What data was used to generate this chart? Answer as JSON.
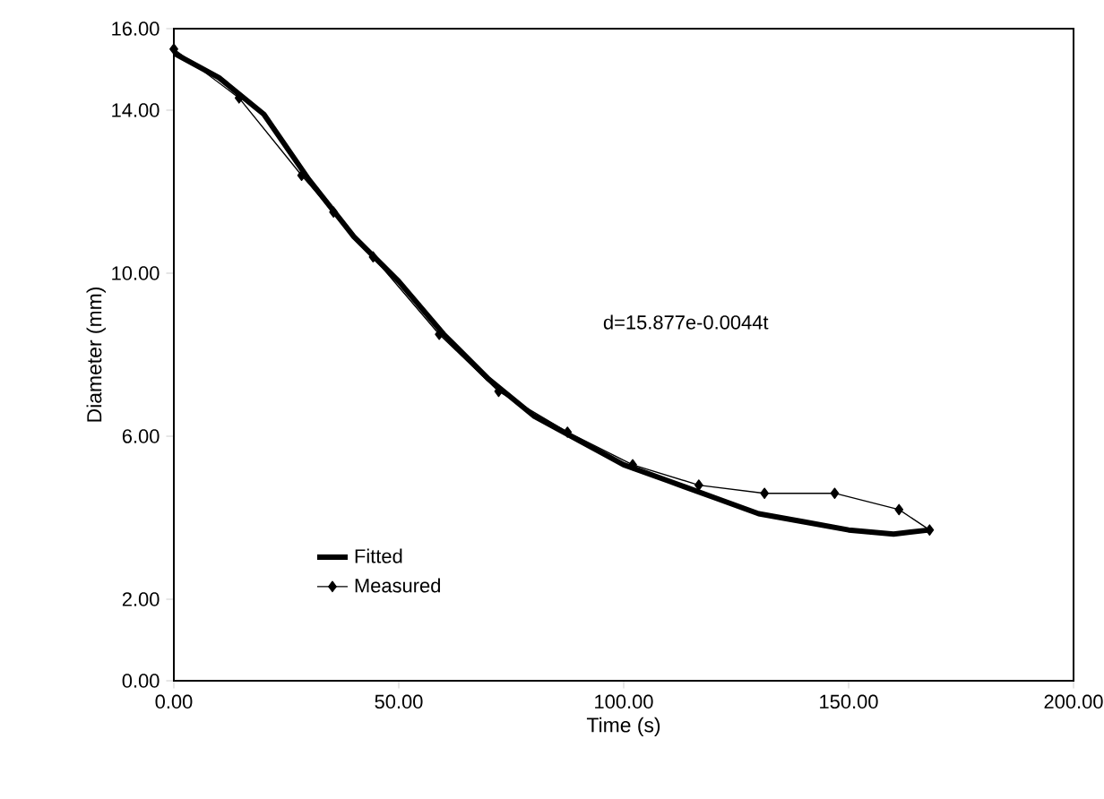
{
  "chart_data": {
    "type": "line",
    "xlabel": "Time (s)",
    "ylabel": "Diameter (mm)",
    "xlim": [
      0,
      200
    ],
    "xticks": [
      {
        "value": 0,
        "label": "0.00"
      },
      {
        "value": 50,
        "label": "50.00"
      },
      {
        "value": 100,
        "label": "100.00"
      },
      {
        "value": 150,
        "label": "150.00"
      },
      {
        "value": 200,
        "label": "200.00"
      }
    ],
    "ylim": [
      0,
      16
    ],
    "yticks": [
      {
        "value": 0,
        "label": "0.00"
      },
      {
        "value": 2,
        "label": "2.00"
      },
      {
        "value": 6,
        "label": "6.00"
      },
      {
        "value": 10,
        "label": "10.00"
      },
      {
        "value": 14,
        "label": "14.00"
      },
      {
        "value": 16,
        "label": "16.00"
      }
    ],
    "grid": false,
    "legend": "bottom left",
    "annotations": [
      "d=15.877e-0.0044t"
    ],
    "series": [
      {
        "name": "Fitted",
        "color": "#000000",
        "marker": "none",
        "x": [
          0,
          10,
          20,
          30,
          40,
          50,
          60,
          70,
          80,
          90,
          100,
          110,
          120,
          130,
          140,
          150,
          160,
          168
        ],
        "values": [
          15.4,
          14.8,
          13.9,
          12.3,
          10.9,
          9.8,
          8.5,
          7.4,
          6.5,
          5.9,
          5.3,
          4.9,
          4.5,
          4.1,
          3.9,
          3.7,
          3.6,
          3.7
        ]
      },
      {
        "name": "Measured",
        "color": "#000000",
        "marker": "diamond",
        "x": [
          0,
          14.5,
          28.4,
          35.5,
          44.3,
          59,
          72.2,
          87.5,
          102,
          116.7,
          131.3,
          146.9,
          161.2,
          168
        ],
        "values": [
          15.5,
          14.3,
          12.4,
          11.5,
          10.4,
          8.5,
          7.1,
          6.1,
          5.3,
          4.8,
          4.6,
          4.6,
          4.2,
          3.7
        ]
      }
    ]
  }
}
